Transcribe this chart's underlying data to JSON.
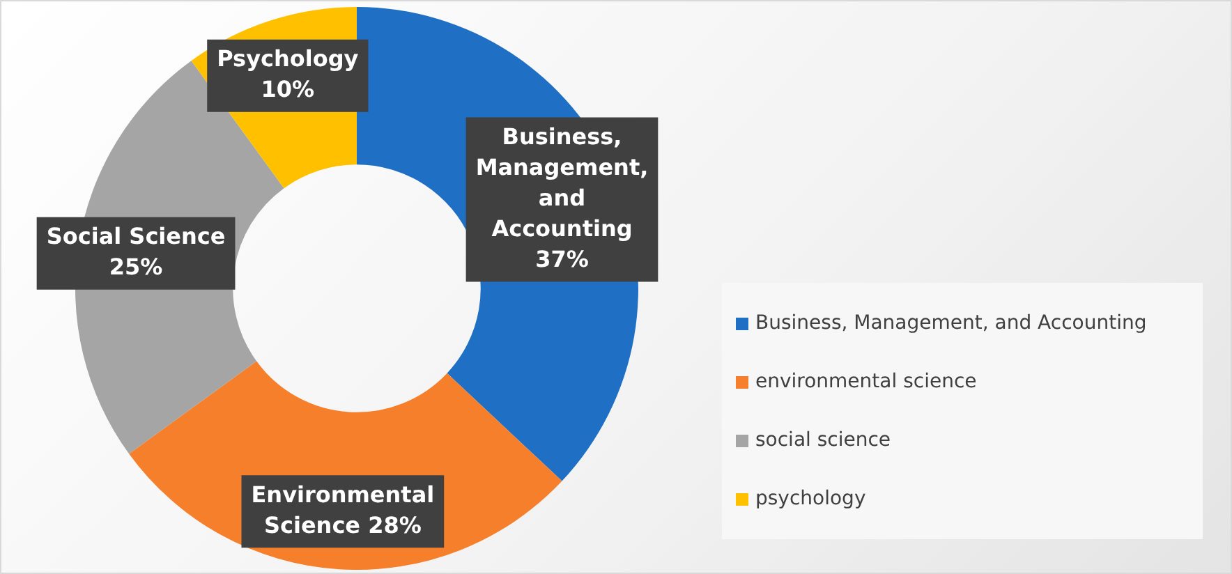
{
  "chart_data": {
    "type": "donut",
    "categories": [
      "Business, Management, and Accounting",
      "environmental science",
      "social science",
      "psychology"
    ],
    "values": [
      37,
      28,
      25,
      10
    ],
    "colors": [
      "#1f6fc5",
      "#f57f2a",
      "#a5a5a5",
      "#ffc000"
    ],
    "value_labels": [
      "Business, Management, and Accounting 37%",
      "Environmental Science 28%",
      "Social Science 25%",
      "Psychology 10%"
    ],
    "legend": "right"
  }
}
